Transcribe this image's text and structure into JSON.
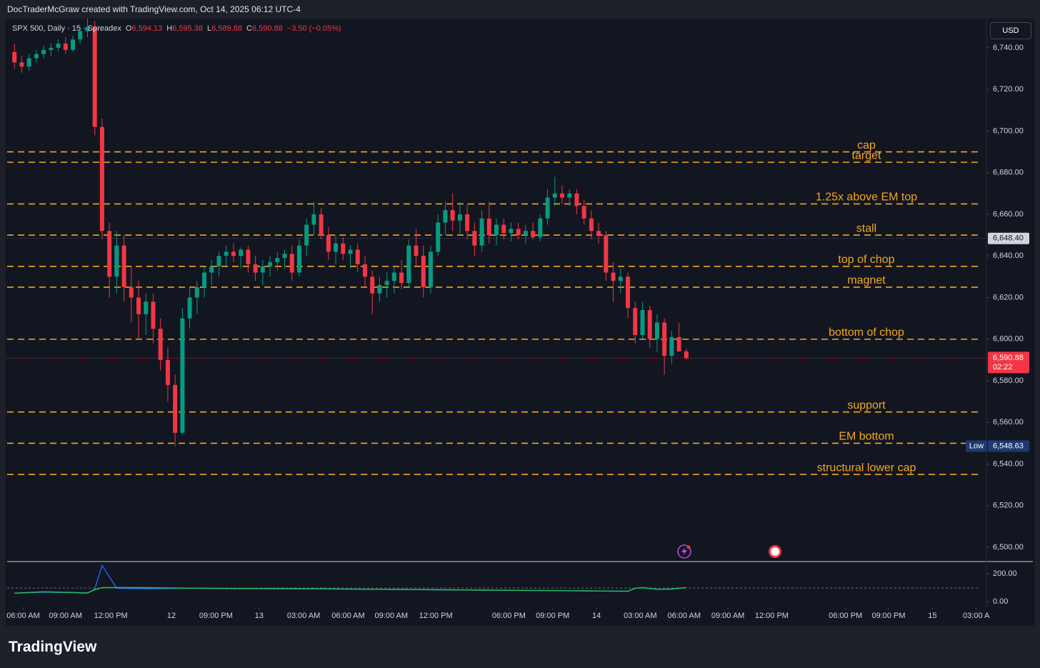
{
  "header": "DocTraderMcGraw created with TradingView.com, Oct 14, 2025 06:12 UTC-4",
  "brand": "TradingView",
  "currency": "USD",
  "legend": {
    "symbol": "SPX 500, Daily · 15 · Spreadex",
    "fields": [
      {
        "key": "O",
        "value": "6,594.13"
      },
      {
        "key": "H",
        "value": "6,595.38"
      },
      {
        "key": "L",
        "value": "6,589.88"
      },
      {
        "key": "C",
        "value": "6,590.88"
      }
    ],
    "change": "−3.50 (−0.05%)"
  },
  "chart_data": {
    "type": "candlestick",
    "up_color": "#089981",
    "down_color": "#f23645",
    "x": [
      0,
      1,
      2,
      3,
      4,
      5,
      6,
      7,
      8,
      9,
      10,
      11,
      12,
      13,
      14,
      15,
      16,
      17,
      18,
      19,
      20,
      21,
      22,
      23,
      24,
      25,
      26,
      27,
      28,
      29,
      30,
      31,
      32,
      33,
      34,
      35,
      36,
      37,
      38,
      39,
      40,
      41,
      42,
      43,
      44,
      45,
      46,
      47,
      48,
      49,
      50,
      51,
      52,
      53,
      54,
      55,
      56,
      57,
      58,
      59,
      60,
      61,
      62,
      63,
      64,
      65,
      66,
      67,
      68,
      69,
      70,
      71,
      72,
      73,
      74,
      75,
      76,
      77,
      78,
      79,
      80,
      81,
      82,
      83,
      84,
      85,
      86,
      87,
      88,
      89,
      90,
      91,
      92
    ],
    "open": [
      6738,
      6733,
      6731,
      6735,
      6737,
      6739,
      6740,
      6742,
      6739,
      6744,
      6748,
      6750,
      6702,
      6652,
      6630,
      6645,
      6625,
      6620,
      6612,
      6618,
      6605,
      6590,
      6578,
      6555,
      6610,
      6620,
      6625,
      6632,
      6635,
      6640,
      6642,
      6640,
      6643,
      6636,
      6632,
      6635,
      6637,
      6639,
      6641,
      6632,
      6645,
      6655,
      6660,
      6650,
      6642,
      6646,
      6641,
      6643,
      6636,
      6630,
      6622,
      6626,
      6628,
      6632,
      6627,
      6645,
      6640,
      6625,
      6642,
      6656,
      6662,
      6657,
      6660,
      6652,
      6645,
      6658,
      6650,
      6655,
      6651,
      6653,
      6650,
      6652,
      6649,
      6658,
      6668,
      6670,
      6668,
      6670,
      6664,
      6658,
      6652,
      6650,
      6632,
      6628,
      6630,
      6615,
      6602,
      6614,
      6600,
      6608,
      6592,
      6601,
      6594.13
    ],
    "high": [
      6742,
      6736,
      6737,
      6739,
      6741,
      6742,
      6744,
      6745,
      6746,
      6750,
      6754,
      6753,
      6706,
      6656,
      6652,
      6650,
      6635,
      6628,
      6622,
      6622,
      6610,
      6596,
      6583,
      6615,
      6625,
      6628,
      6635,
      6638,
      6642,
      6645,
      6646,
      6644,
      6645,
      6640,
      6638,
      6640,
      6642,
      6643,
      6645,
      6648,
      6658,
      6666,
      6663,
      6654,
      6650,
      6649,
      6645,
      6646,
      6640,
      6633,
      6630,
      6632,
      6635,
      6638,
      6648,
      6653,
      6645,
      6645,
      6660,
      6666,
      6670,
      6666,
      6665,
      6656,
      6662,
      6666,
      6658,
      6658,
      6656,
      6656,
      6655,
      6656,
      6660,
      6672,
      6678,
      6674,
      6672,
      6672,
      6667,
      6662,
      6656,
      6652,
      6637,
      6634,
      6632,
      6618,
      6618,
      6616,
      6612,
      6610,
      6604,
      6608,
      6595.38
    ],
    "low": [
      6730,
      6728,
      6729,
      6733,
      6735,
      6736,
      6738,
      6737,
      6738,
      6742,
      6745,
      6698,
      6648,
      6620,
      6622,
      6618,
      6608,
      6600,
      6602,
      6598,
      6585,
      6570,
      6548.63,
      6554,
      6605,
      6612,
      6620,
      6626,
      6630,
      6635,
      6637,
      6634,
      6632,
      6628,
      6626,
      6630,
      6633,
      6634,
      6628,
      6630,
      6640,
      6650,
      6648,
      6638,
      6636,
      6638,
      6634,
      6632,
      6625,
      6612,
      6618,
      6620,
      6622,
      6624,
      6625,
      6635,
      6620,
      6622,
      6640,
      6650,
      6652,
      6650,
      6648,
      6640,
      6642,
      6646,
      6645,
      6648,
      6647,
      6648,
      6646,
      6648,
      6647,
      6655,
      6664,
      6665,
      6664,
      6660,
      6655,
      6648,
      6646,
      6628,
      6618,
      6622,
      6610,
      6598,
      6600,
      6596,
      6594,
      6583,
      6588,
      6594,
      6589.88
    ],
    "close": [
      6733,
      6731,
      6735,
      6737,
      6739,
      6740,
      6742,
      6739,
      6744,
      6748,
      6750,
      6702,
      6652,
      6630,
      6645,
      6625,
      6620,
      6612,
      6618,
      6605,
      6590,
      6578,
      6555,
      6610,
      6620,
      6625,
      6632,
      6635,
      6640,
      6642,
      6640,
      6643,
      6636,
      6632,
      6635,
      6637,
      6639,
      6641,
      6632,
      6645,
      6655,
      6660,
      6650,
      6642,
      6646,
      6641,
      6643,
      6636,
      6630,
      6622,
      6626,
      6628,
      6632,
      6627,
      6645,
      6640,
      6625,
      6642,
      6656,
      6662,
      6657,
      6660,
      6652,
      6645,
      6658,
      6650,
      6655,
      6651,
      6653,
      6650,
      6652,
      6649,
      6658,
      6668,
      6670,
      6668,
      6670,
      6664,
      6658,
      6652,
      6650,
      6632,
      6628,
      6630,
      6615,
      6602,
      6614,
      6600,
      6608,
      6592,
      6601,
      6594.13,
      6590.88
    ],
    "xlim": [
      -1,
      133
    ],
    "xticks": [
      {
        "value": 1.2,
        "label": "06:00 AM"
      },
      {
        "value": 7,
        "label": "09:00 AM"
      },
      {
        "value": 13.2,
        "label": "12:00 PM"
      },
      {
        "value": 21.5,
        "label": "12"
      },
      {
        "value": 27.6,
        "label": "09:00 PM"
      },
      {
        "value": 33.5,
        "label": "13"
      },
      {
        "value": 39.6,
        "label": "03:00 AM"
      },
      {
        "value": 45.7,
        "label": "06:00 AM"
      },
      {
        "value": 51.6,
        "label": "09:00 AM"
      },
      {
        "value": 57.7,
        "label": "12:00 PM"
      },
      {
        "value": 67.7,
        "label": "06:00 PM"
      },
      {
        "value": 73.7,
        "label": "09:00 PM"
      },
      {
        "value": 79.7,
        "label": "14"
      },
      {
        "value": 85.7,
        "label": "03:00 AM"
      },
      {
        "value": 91.7,
        "label": "06:00 AM"
      },
      {
        "value": 97.7,
        "label": "09:00 AM"
      },
      {
        "value": 103.7,
        "label": "12:00 PM"
      },
      {
        "value": 113.8,
        "label": "06:00 PM"
      },
      {
        "value": 119.7,
        "label": "09:00 PM"
      },
      {
        "value": 125.7,
        "label": "15"
      },
      {
        "value": 131.7,
        "label": "03:00 A"
      }
    ],
    "ylim": [
      6493.5,
      6753.7
    ],
    "yticks": [
      {
        "value": 6500,
        "label": "6,500.00"
      },
      {
        "value": 6520,
        "label": "6,520.00"
      },
      {
        "value": 6540,
        "label": "6,540.00"
      },
      {
        "value": 6560,
        "label": "6,560.00"
      },
      {
        "value": 6580,
        "label": "6,580.00"
      },
      {
        "value": 6600,
        "label": "6,600.00"
      },
      {
        "value": 6620,
        "label": "6,620.00"
      },
      {
        "value": 6640,
        "label": "6,640.00"
      },
      {
        "value": 6660,
        "label": "6,660.00"
      },
      {
        "value": 6680,
        "label": "6,680.00"
      },
      {
        "value": 6700,
        "label": "6,700.00"
      },
      {
        "value": 6720,
        "label": "6,720.00"
      },
      {
        "value": 6740,
        "label": "6,740.00"
      }
    ],
    "level_color": "#f5a623",
    "levels": [
      {
        "name": "cap",
        "value": 6690
      },
      {
        "name": "target",
        "value": 6685
      },
      {
        "name": "1.25x above EM top",
        "value": 6665
      },
      {
        "name": "stall",
        "value": 6650
      },
      {
        "name": "top of chop",
        "value": 6635
      },
      {
        "name": "magnet",
        "value": 6625
      },
      {
        "name": "bottom of chop",
        "value": 6600
      },
      {
        "name": "support",
        "value": 6565
      },
      {
        "name": "EM bottom",
        "value": 6550
      },
      {
        "name": "structural lower cap",
        "value": 6535
      }
    ],
    "current_price": {
      "value": 6590.88,
      "label": "6,590.88",
      "countdown": "02:22"
    },
    "crosshair_price": {
      "value": 6648.4,
      "label": "6,648.40"
    },
    "low_marker": {
      "name": "Low",
      "value": 6548.63,
      "label": "6,548.63"
    },
    "indicator": {
      "type": "line",
      "x": [
        0,
        4,
        8,
        10,
        11,
        12,
        14,
        18,
        24,
        30,
        40,
        50,
        60,
        70,
        80,
        84,
        85,
        86,
        88,
        90,
        92
      ],
      "series": [
        {
          "color": "#2962ff",
          "values": [
            60,
            68,
            64,
            60,
            90,
            260,
            95,
            92,
            96,
            94,
            92,
            88,
            84,
            80,
            76,
            74,
            95,
            100,
            88,
            90,
            100
          ]
        },
        {
          "color": "#22c55e",
          "values": [
            60,
            70,
            65,
            62,
            85,
            100,
            100,
            100,
            96,
            94,
            92,
            88,
            84,
            80,
            76,
            74,
            95,
            100,
            88,
            90,
            100
          ]
        }
      ],
      "reference": 97,
      "ylim": [
        -41,
        282
      ],
      "yticks": [
        {
          "value": 200,
          "label": "200.00"
        },
        {
          "value": 0,
          "label": "0.00"
        }
      ]
    }
  }
}
